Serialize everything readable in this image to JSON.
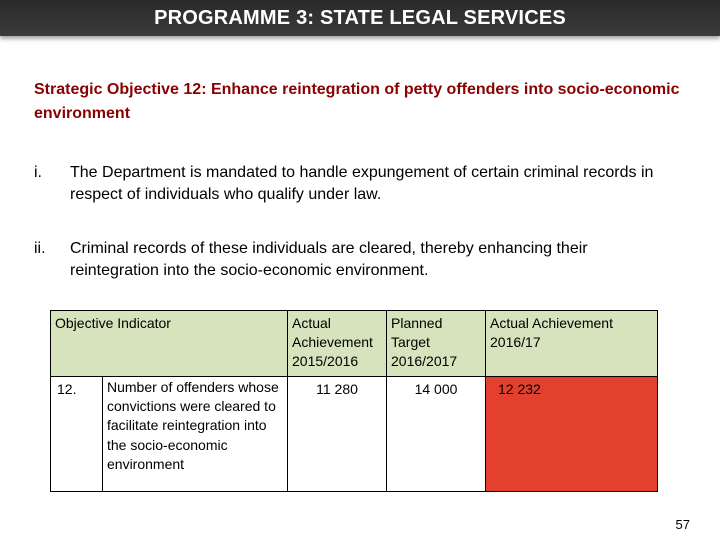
{
  "slide": {
    "title": "PROGRAMME 3: STATE LEGAL SERVICES",
    "objective": "Strategic Objective 12: Enhance reintegration of petty offenders into socio-economic environment",
    "points": [
      {
        "number": "i.",
        "text": "The Department is mandated to handle expungement of certain criminal records in respect of individuals who qualify under law."
      },
      {
        "number": "ii.",
        "text": "Criminal records of these individuals are cleared, thereby enhancing their reintegration into the socio-economic environment."
      }
    ],
    "page_number": "57"
  },
  "table": {
    "headers": {
      "objective_indicator": "Objective Indicator",
      "actual_achievement": "Actual Achievement 2015/2016",
      "planned_target": "Planned Target 2016/2017",
      "actual_achievement_current": "Actual Achievement 2016/17"
    },
    "rows": [
      {
        "number": "12.",
        "indicator": "Number of offenders whose convictions were cleared to facilitate reintegration into the socio-economic environment",
        "actual_2015_2016": "11 280",
        "target_2016_2017": "14 000",
        "actual_2016_17": "12 232",
        "status_color": "#e3412e"
      }
    ]
  },
  "colors": {
    "title_bar": "#333333",
    "objective_text": "#8b0000",
    "table_header": "#d6e3bc",
    "status_red": "#e3412e"
  }
}
